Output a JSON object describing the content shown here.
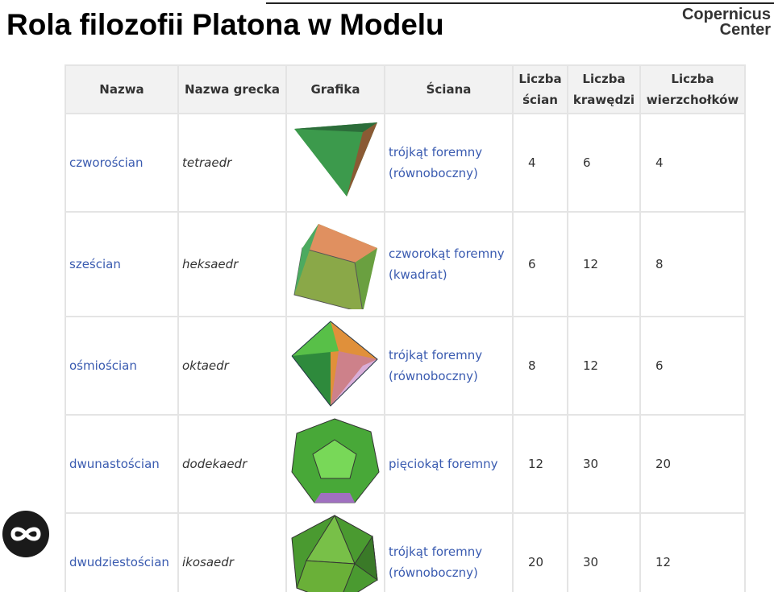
{
  "header": {
    "title": "Rola filozofii Platona w Modelu",
    "logo": [
      "Copernicus",
      "Center"
    ]
  },
  "table": {
    "columns": [
      "Nazwa",
      "Nazwa grecka",
      "Grafika",
      "Ściana",
      "Liczba ścian",
      "Liczba krawędzi",
      "Liczba wierzchołków"
    ],
    "rows": [
      [
        "czworościan",
        "tetraedr",
        [
          "trójkąt foremny",
          "(równoboczny)"
        ],
        4,
        6,
        4
      ],
      [
        "sześcian",
        "heksaedr",
        [
          "czworokąt foremny",
          "(kwadrat)"
        ],
        6,
        12,
        8
      ],
      [
        "ośmiościan",
        "oktaedr",
        [
          "trójkąt foremny",
          "(równoboczny)"
        ],
        8,
        12,
        6
      ],
      [
        "dwunastościan",
        "dodekaedr",
        [
          "pięciokąt foremny"
        ],
        12,
        30,
        20
      ],
      [
        "dwudziestościan",
        "ikosaedr",
        [
          "trójkąt foremny",
          "(równoboczny)"
        ],
        20,
        30,
        12
      ]
    ]
  }
}
